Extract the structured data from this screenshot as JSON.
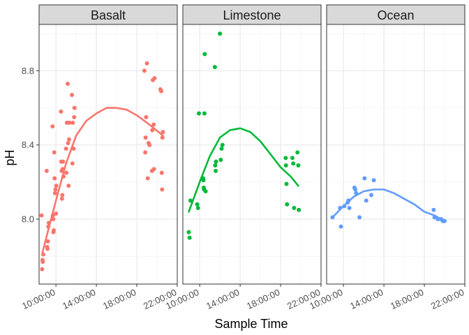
{
  "chart_data": {
    "type": "scatter",
    "facet": "facet_wrap",
    "title": "",
    "xlabel": "Sample Time",
    "ylabel": "pH",
    "xlim": [
      "08:20:00",
      "22:00:00"
    ],
    "ylim": [
      7.65,
      9.05
    ],
    "x_ticks": [
      "10:00:00",
      "14:00:00",
      "18:00:00",
      "22:00:00"
    ],
    "y_ticks": [
      "8.0",
      "8.4",
      "8.8"
    ],
    "grid": true,
    "legend": "none",
    "panels": [
      {
        "name": "Basalt",
        "color": "#F8766D",
        "points": [
          [
            "08:35:00",
            8.02
          ],
          [
            "08:38:00",
            7.73
          ],
          [
            "08:40:00",
            7.78
          ],
          [
            "08:42:00",
            7.77
          ],
          [
            "08:45:00",
            7.81
          ],
          [
            "09:05:00",
            8.26
          ],
          [
            "09:08:00",
            7.85
          ],
          [
            "09:10:00",
            7.84
          ],
          [
            "09:12:00",
            7.88
          ],
          [
            "09:15:00",
            7.96
          ],
          [
            "09:18:00",
            7.98
          ],
          [
            "09:40:00",
            8.5
          ],
          [
            "09:42:00",
            8.02
          ],
          [
            "09:44:00",
            8.0
          ],
          [
            "09:45:00",
            7.93
          ],
          [
            "09:47:00",
            7.94
          ],
          [
            "09:50:00",
            8.36
          ],
          [
            "09:52:00",
            8.22
          ],
          [
            "09:55:00",
            8.14
          ],
          [
            "09:57:00",
            8.16
          ],
          [
            "10:00:00",
            8.03
          ],
          [
            "10:02:00",
            8.18
          ],
          [
            "10:30:00",
            8.58
          ],
          [
            "10:32:00",
            8.31
          ],
          [
            "10:34:00",
            8.26
          ],
          [
            "10:36:00",
            8.11
          ],
          [
            "10:38:00",
            8.13
          ],
          [
            "10:40:00",
            8.27
          ],
          [
            "10:42:00",
            8.31
          ],
          [
            "10:45:00",
            8.23
          ],
          [
            "11:00:00",
            8.38
          ],
          [
            "11:02:00",
            8.25
          ],
          [
            "11:05:00",
            8.52
          ],
          [
            "11:10:00",
            8.73
          ],
          [
            "11:12:00",
            8.41
          ],
          [
            "11:15:00",
            8.18
          ],
          [
            "11:18:00",
            8.43
          ],
          [
            "11:20:00",
            8.52
          ],
          [
            "11:35:00",
            8.67
          ],
          [
            "11:38:00",
            8.3
          ],
          [
            "11:40:00",
            8.52
          ],
          [
            "11:45:00",
            8.38
          ],
          [
            "11:48:00",
            8.55
          ],
          [
            "11:50:00",
            8.6
          ],
          [
            "18:45:00",
            8.8
          ],
          [
            "18:50:00",
            8.36
          ],
          [
            "18:52:00",
            8.44
          ],
          [
            "18:55:00",
            8.55
          ],
          [
            "19:00:00",
            8.84
          ],
          [
            "19:05:00",
            8.22
          ],
          [
            "19:10:00",
            8.41
          ],
          [
            "19:15:00",
            8.4
          ],
          [
            "19:30:00",
            8.26
          ],
          [
            "19:32:00",
            8.48
          ],
          [
            "19:35:00",
            8.75
          ],
          [
            "19:40:00",
            8.51
          ],
          [
            "19:42:00",
            8.27
          ],
          [
            "19:45:00",
            8.76
          ],
          [
            "20:20:00",
            8.7
          ],
          [
            "20:25:00",
            8.69
          ],
          [
            "20:28:00",
            8.25
          ],
          [
            "20:30:00",
            8.16
          ],
          [
            "20:32:00",
            8.44
          ],
          [
            "20:35:00",
            8.47
          ]
        ],
        "smooth": [
          [
            "08:40:00",
            7.82
          ],
          [
            "10:00:00",
            8.1
          ],
          [
            "11:00:00",
            8.3
          ],
          [
            "12:00:00",
            8.45
          ],
          [
            "13:00:00",
            8.53
          ],
          [
            "14:00:00",
            8.57
          ],
          [
            "15:00:00",
            8.6
          ],
          [
            "16:00:00",
            8.6
          ],
          [
            "17:00:00",
            8.59
          ],
          [
            "18:00:00",
            8.56
          ],
          [
            "19:00:00",
            8.52
          ],
          [
            "20:35:00",
            8.45
          ]
        ]
      },
      {
        "name": "Limestone",
        "color": "#00BA38",
        "points": [
          [
            "08:55:00",
            7.93
          ],
          [
            "09:00:00",
            7.9
          ],
          [
            "09:05:00",
            8.1
          ],
          [
            "09:45:00",
            8.08
          ],
          [
            "09:50:00",
            8.06
          ],
          [
            "09:55:00",
            8.57
          ],
          [
            "10:20:00",
            8.22
          ],
          [
            "10:22:00",
            8.21
          ],
          [
            "10:24:00",
            8.17
          ],
          [
            "10:26:00",
            8.16
          ],
          [
            "10:28:00",
            8.57
          ],
          [
            "10:30:00",
            8.89
          ],
          [
            "10:35:00",
            8.15
          ],
          [
            "11:30:00",
            8.82
          ],
          [
            "11:32:00",
            8.29
          ],
          [
            "11:35:00",
            8.26
          ],
          [
            "11:37:00",
            8.31
          ],
          [
            "12:00:00",
            9.0
          ],
          [
            "12:05:00",
            8.32
          ],
          [
            "12:10:00",
            8.38
          ],
          [
            "12:15:00",
            8.4
          ],
          [
            "18:30:00",
            8.33
          ],
          [
            "18:32:00",
            8.29
          ],
          [
            "18:35:00",
            8.19
          ],
          [
            "18:38:00",
            8.08
          ],
          [
            "19:10:00",
            8.33
          ],
          [
            "19:15:00",
            8.3
          ],
          [
            "19:20:00",
            8.06
          ],
          [
            "19:40:00",
            8.36
          ],
          [
            "19:45:00",
            8.29
          ],
          [
            "19:48:00",
            8.05
          ]
        ],
        "smooth": [
          [
            "08:55:00",
            8.04
          ],
          [
            "10:00:00",
            8.2
          ],
          [
            "11:00:00",
            8.34
          ],
          [
            "12:00:00",
            8.44
          ],
          [
            "13:00:00",
            8.48
          ],
          [
            "14:00:00",
            8.49
          ],
          [
            "15:00:00",
            8.47
          ],
          [
            "16:00:00",
            8.42
          ],
          [
            "17:00:00",
            8.35
          ],
          [
            "18:00:00",
            8.28
          ],
          [
            "19:00:00",
            8.23
          ],
          [
            "19:45:00",
            8.18
          ]
        ]
      },
      {
        "name": "Ocean",
        "color": "#619CFF",
        "points": [
          [
            "08:55:00",
            8.01
          ],
          [
            "09:40:00",
            8.06
          ],
          [
            "09:45:00",
            7.96
          ],
          [
            "10:05:00",
            8.07
          ],
          [
            "10:25:00",
            8.09
          ],
          [
            "10:30:00",
            8.1
          ],
          [
            "10:35:00",
            8.06
          ],
          [
            "11:05:00",
            8.17
          ],
          [
            "11:10:00",
            8.16
          ],
          [
            "11:15:00",
            8.14
          ],
          [
            "11:35:00",
            8.01
          ],
          [
            "12:05:00",
            8.22
          ],
          [
            "12:15:00",
            8.1
          ],
          [
            "12:45:00",
            8.13
          ],
          [
            "13:00:00",
            8.21
          ],
          [
            "18:55:00",
            8.05
          ],
          [
            "19:00:00",
            8.01
          ],
          [
            "19:20:00",
            8.0
          ],
          [
            "19:40:00",
            8.0
          ],
          [
            "19:50:00",
            7.99
          ],
          [
            "19:55:00",
            7.99
          ],
          [
            "20:00:00",
            7.99
          ]
        ],
        "smooth": [
          [
            "08:55:00",
            8.01
          ],
          [
            "10:00:00",
            8.07
          ],
          [
            "11:00:00",
            8.12
          ],
          [
            "12:00:00",
            8.15
          ],
          [
            "13:00:00",
            8.16
          ],
          [
            "14:00:00",
            8.16
          ],
          [
            "15:00:00",
            8.14
          ],
          [
            "16:00:00",
            8.11
          ],
          [
            "17:00:00",
            8.08
          ],
          [
            "18:00:00",
            8.04
          ],
          [
            "19:00:00",
            8.02
          ],
          [
            "20:00:00",
            7.99
          ]
        ]
      }
    ]
  }
}
